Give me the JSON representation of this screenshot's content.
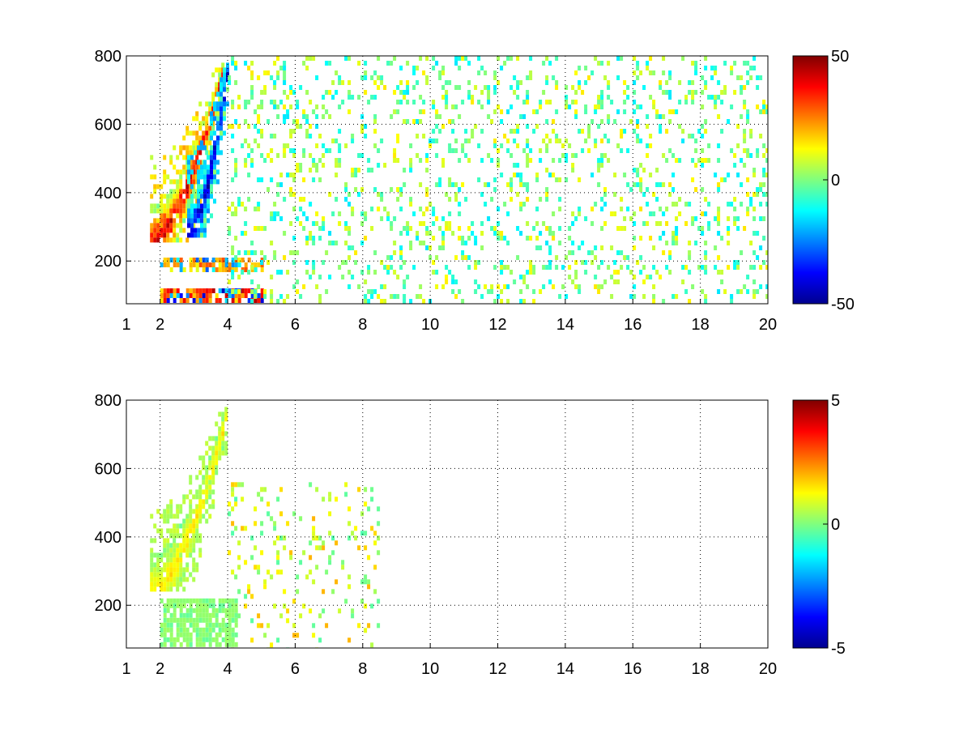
{
  "chart_data": [
    {
      "type": "heatmap",
      "title": "",
      "xlabel": "",
      "ylabel": "",
      "xlim": [
        1,
        20
      ],
      "ylim": [
        75,
        800
      ],
      "xticks": [
        "1",
        "2",
        "4",
        "6",
        "8",
        "10",
        "12",
        "14",
        "16",
        "18",
        "20"
      ],
      "yticks": [
        "200",
        "400",
        "600",
        "800"
      ],
      "grid": true,
      "colormap": "jet",
      "clim": [
        -50,
        50
      ],
      "colorbar_ticks": [
        "50",
        "0",
        "-50"
      ],
      "empty_cells_color": "#ffffff",
      "features": [
        {
          "kind": "diagonal-band",
          "x_start": 1.7,
          "x_end": 3.9,
          "y_start": 260,
          "y_end": 780,
          "value": 40
        },
        {
          "kind": "diagonal-band",
          "x_start": 2.8,
          "x_end": 4.0,
          "y_start": 280,
          "y_end": 780,
          "value": -45
        },
        {
          "kind": "horizontal-band",
          "x_start": 2.0,
          "x_end": 5.0,
          "y_start": 80,
          "y_end": 120,
          "value": 45
        },
        {
          "kind": "horizontal-band",
          "x_start": 2.0,
          "x_end": 5.0,
          "y_start": 180,
          "y_end": 210,
          "value": 30
        },
        {
          "kind": "scatter-region",
          "x_start": 4.0,
          "x_end": 20.0,
          "y_start": 75,
          "y_end": 800,
          "value_range": [
            -15,
            15
          ],
          "density": 0.18
        }
      ]
    },
    {
      "type": "heatmap",
      "title": "",
      "xlabel": "",
      "ylabel": "",
      "xlim": [
        1,
        20
      ],
      "ylim": [
        75,
        800
      ],
      "xticks": [
        "1",
        "2",
        "4",
        "6",
        "8",
        "10",
        "12",
        "14",
        "16",
        "18",
        "20"
      ],
      "yticks": [
        "200",
        "400",
        "600",
        "800"
      ],
      "grid": true,
      "colormap": "jet",
      "clim": [
        -5,
        5
      ],
      "colorbar_ticks": [
        "5",
        "0",
        "-5"
      ],
      "empty_cells_color": "#ffffff",
      "features": [
        {
          "kind": "diagonal-band",
          "x_start": 1.7,
          "x_end": 4.0,
          "y_start": 240,
          "y_end": 780,
          "value": 1.5
        },
        {
          "kind": "horizontal-band",
          "x_start": 2.0,
          "x_end": 4.3,
          "y_start": 80,
          "y_end": 220,
          "value": 0.3
        },
        {
          "kind": "sparse-region",
          "x_start": 4.0,
          "x_end": 8.5,
          "y_start": 75,
          "y_end": 560,
          "value_range": [
            -0.5,
            2.0
          ],
          "density": 0.12
        }
      ]
    }
  ]
}
